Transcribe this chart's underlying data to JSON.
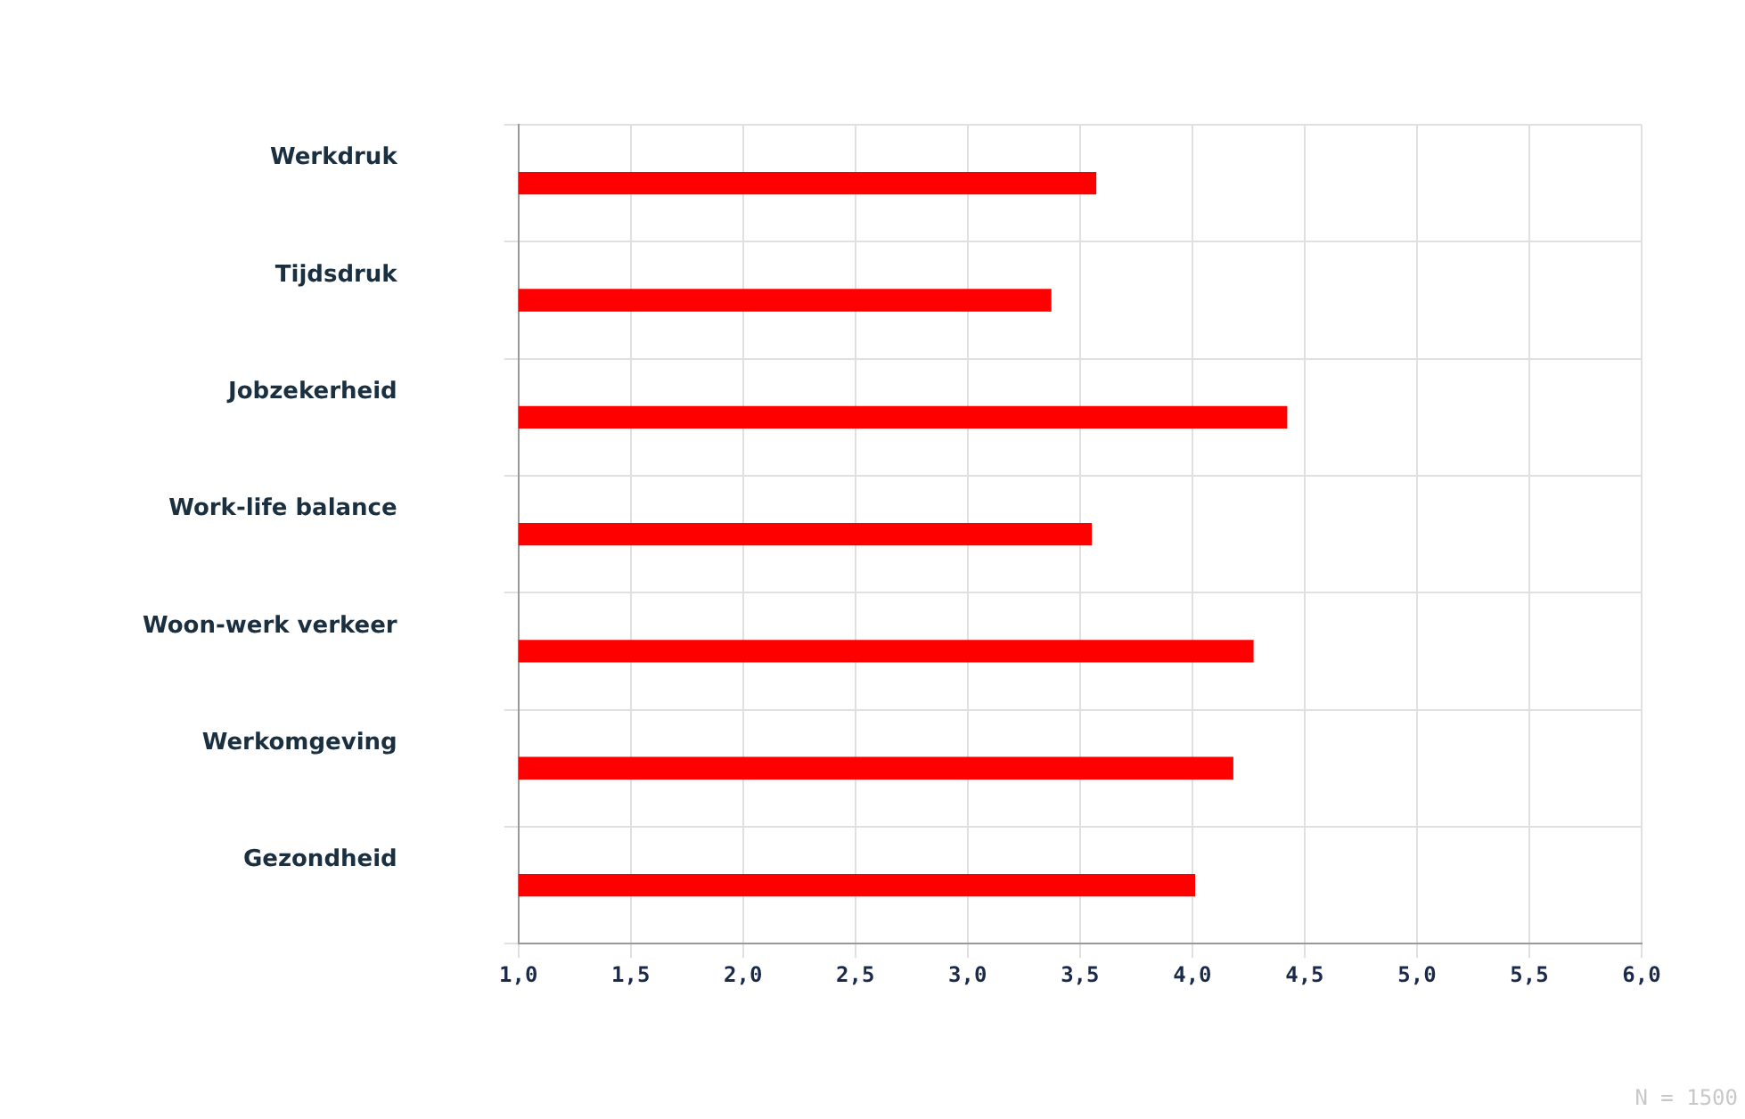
{
  "chart_data": {
    "type": "bar",
    "orientation": "horizontal",
    "categories": [
      "Werkdruk",
      "Tijdsdruk",
      "Jobzekerheid",
      "Work-life balance",
      "Woon-werk verkeer",
      "Werkomgeving",
      "Gezondheid"
    ],
    "values": [
      3.57,
      3.37,
      4.42,
      3.55,
      4.27,
      4.18,
      4.01
    ],
    "color": "#ff0000",
    "xlim": [
      1,
      6
    ],
    "xticks": [
      {
        "value": 1,
        "label": "1,0"
      },
      {
        "value": 1.5,
        "label": "1,5"
      },
      {
        "value": 2,
        "label": "2,0"
      },
      {
        "value": 2.5,
        "label": "2,5"
      },
      {
        "value": 3,
        "label": "3,0"
      },
      {
        "value": 3.5,
        "label": "3,5"
      },
      {
        "value": 4,
        "label": "4,0"
      },
      {
        "value": 4.5,
        "label": "4,5"
      },
      {
        "value": 5,
        "label": "5,0"
      },
      {
        "value": 5.5,
        "label": "5,5"
      },
      {
        "value": 6,
        "label": "6,0"
      }
    ],
    "grid": true,
    "annotations": [
      "N = 1500"
    ]
  }
}
